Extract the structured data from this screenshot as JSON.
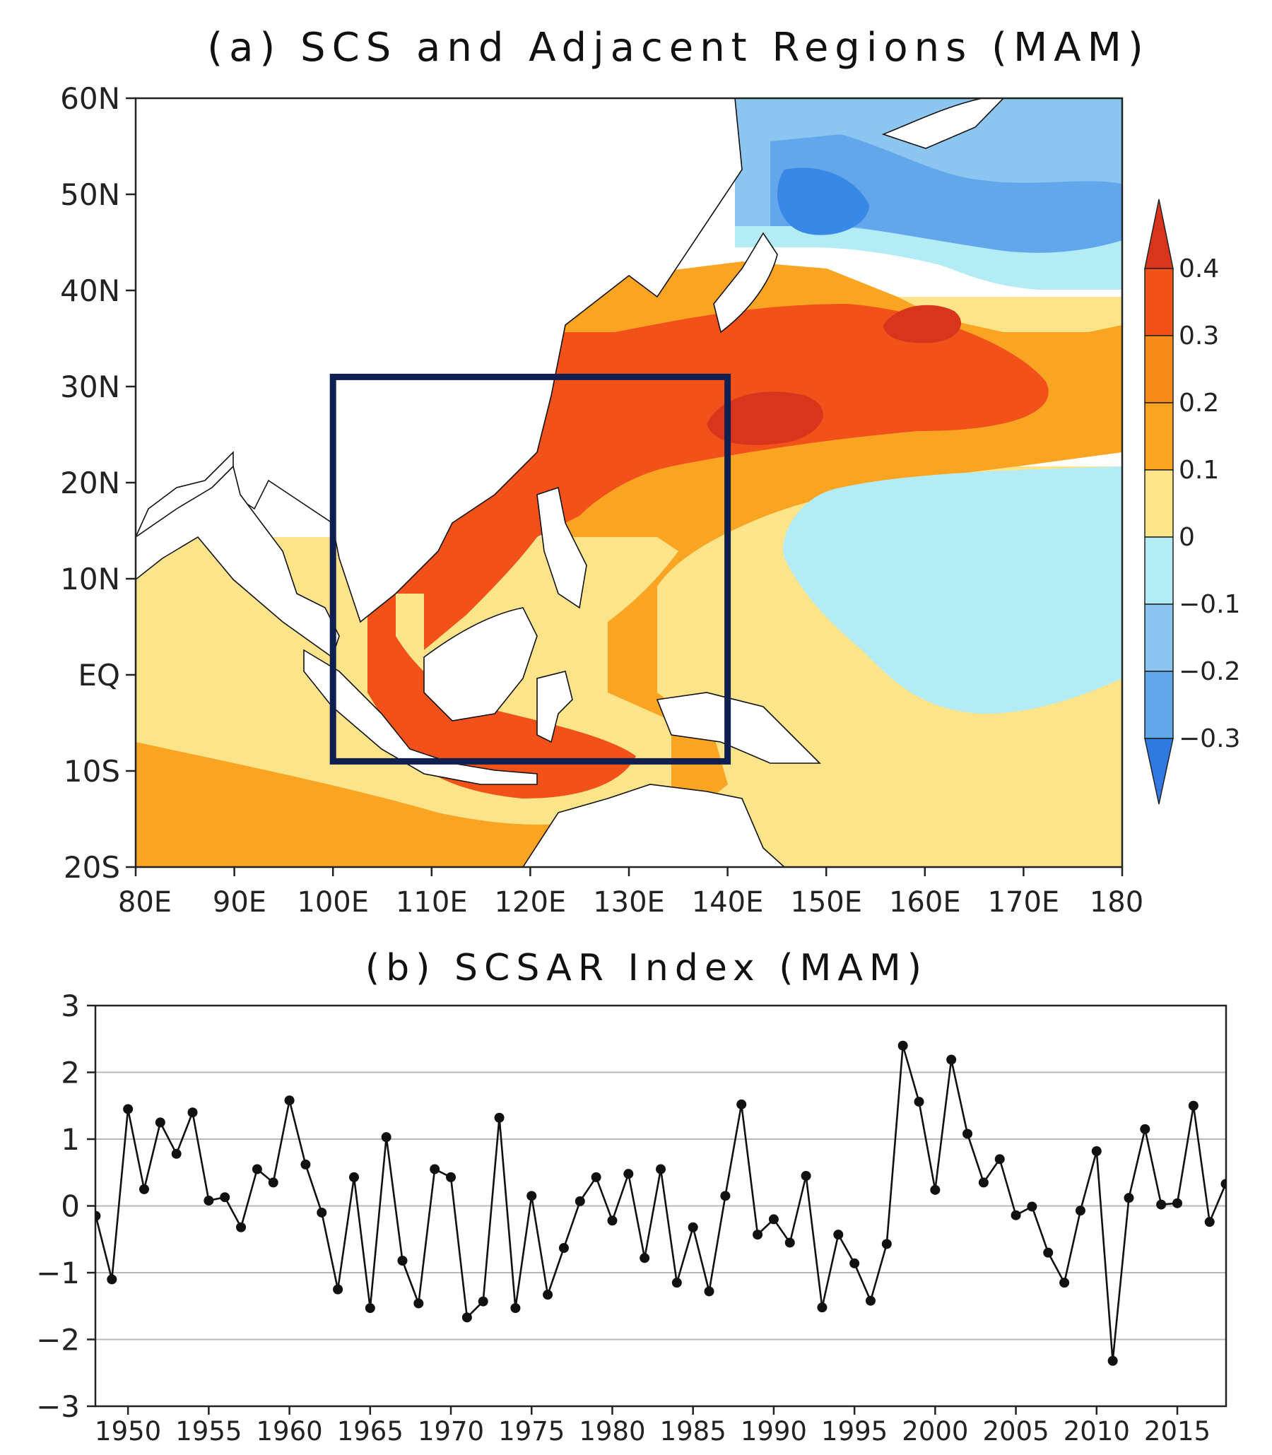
{
  "panel_a": {
    "title": "(a) SCS and Adjacent Regions (MAM)",
    "y_ticks": [
      "60N",
      "50N",
      "40N",
      "30N",
      "20N",
      "10N",
      "EQ",
      "10S",
      "20S"
    ],
    "x_ticks": [
      "80E",
      "90E",
      "100E",
      "110E",
      "120E",
      "130E",
      "140E",
      "150E",
      "160E",
      "170E",
      "180"
    ],
    "region_box": {
      "lon": [
        100,
        140
      ],
      "lat": [
        -9,
        31
      ]
    },
    "colorbar": {
      "labels": [
        "0.4",
        "0.3",
        "0.2",
        "0.1",
        "0",
        "−0.1",
        "−0.2",
        "−0.3"
      ],
      "colors": [
        "#d9341c",
        "#f2521a",
        "#f78b1a",
        "#f9a523",
        "#fbe48a",
        "#b4ecf5",
        "#8cc6f0",
        "#62a7ec",
        "#3a88e6",
        "#2f79e0"
      ]
    }
  },
  "chart_data": [
    {
      "type": "contour-map",
      "title": "(a) SCS and Adjacent Regions (MAM)",
      "xlabel": "",
      "ylabel": "",
      "xlim": [
        80,
        180
      ],
      "ylim": [
        -20,
        60
      ],
      "levels": [
        -0.3,
        -0.2,
        -0.1,
        0,
        0.1,
        0.2,
        0.3,
        0.4
      ],
      "box": {
        "lon": [
          100,
          140
        ],
        "lat": [
          -9,
          31
        ]
      }
    },
    {
      "type": "line",
      "title": "(b) SCSAR Index (MAM)",
      "xlabel": "",
      "ylabel": "",
      "ylim": [
        -3,
        3
      ],
      "y_ticks": [
        "3",
        "2",
        "1",
        "0",
        "−1",
        "−2",
        "−3"
      ],
      "x_tick_labels": [
        "1950",
        "1955",
        "1960",
        "1965",
        "1970",
        "1975",
        "1980",
        "1985",
        "1990",
        "1995",
        "2000",
        "2005",
        "2010",
        "2015"
      ],
      "x": [
        1948,
        1949,
        1950,
        1951,
        1952,
        1953,
        1954,
        1955,
        1956,
        1957,
        1958,
        1959,
        1960,
        1961,
        1962,
        1963,
        1964,
        1965,
        1966,
        1967,
        1968,
        1969,
        1970,
        1971,
        1972,
        1973,
        1974,
        1975,
        1976,
        1977,
        1978,
        1979,
        1980,
        1981,
        1982,
        1983,
        1984,
        1985,
        1986,
        1987,
        1988,
        1989,
        1990,
        1991,
        1992,
        1993,
        1994,
        1995,
        1996,
        1997,
        1998,
        1999,
        2000,
        2001,
        2002,
        2003,
        2004,
        2005,
        2006,
        2007,
        2008,
        2009,
        2010,
        2011,
        2012,
        2013,
        2014,
        2015,
        2016,
        2017,
        2018
      ],
      "values": [
        -0.15,
        -1.1,
        1.45,
        0.25,
        1.25,
        0.78,
        1.4,
        0.08,
        0.13,
        -0.32,
        0.55,
        0.35,
        1.58,
        0.62,
        -0.1,
        -1.25,
        0.43,
        -1.53,
        1.03,
        -0.82,
        -1.46,
        0.55,
        0.43,
        -1.67,
        -1.43,
        1.32,
        -1.53,
        0.15,
        -1.33,
        -0.63,
        0.07,
        0.43,
        -0.22,
        0.48,
        -0.78,
        0.55,
        -1.15,
        -0.32,
        -1.28,
        0.15,
        1.52,
        -0.43,
        -0.2,
        -0.55,
        0.45,
        -1.52,
        -0.43,
        -0.86,
        -1.42,
        -0.57,
        2.4,
        1.56,
        0.24,
        2.19,
        1.08,
        0.35,
        0.7,
        -0.14,
        -0.01,
        -0.7,
        -1.15,
        -0.07,
        0.82,
        -2.32,
        0.12,
        1.15,
        0.02,
        0.04,
        1.5,
        -0.24,
        0.33
      ]
    }
  ]
}
